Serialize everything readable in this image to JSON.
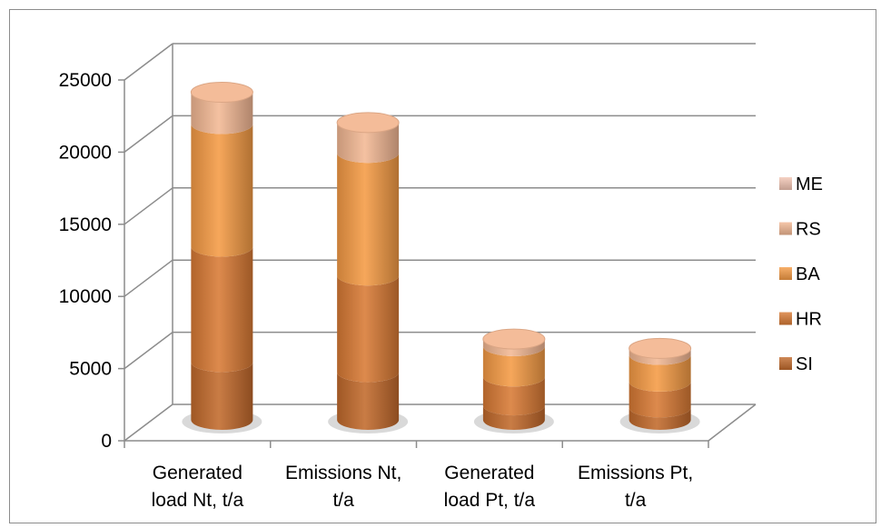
{
  "chart_data": {
    "type": "bar",
    "stacked": true,
    "style": "3d-cylinder",
    "categories": [
      [
        "Generated",
        "load Nt, t/a"
      ],
      [
        "Emissions Nt,",
        "t/a"
      ],
      [
        "Generated",
        "load Pt,  t/a"
      ],
      [
        "Emissions Pt,",
        "t/a"
      ]
    ],
    "series": [
      {
        "name": "SI",
        "color": "#c26a2c",
        "values": [
          4000,
          3300,
          1000,
          850
        ]
      },
      {
        "name": "HR",
        "color": "#d87a35",
        "values": [
          8000,
          6700,
          2000,
          1800
        ]
      },
      {
        "name": "BA",
        "color": "#f59b45",
        "values": [
          8500,
          8500,
          2100,
          1850
        ]
      },
      {
        "name": "RS",
        "color": "#f3b894",
        "values": [
          2200,
          2100,
          500,
          450
        ]
      },
      {
        "name": "ME",
        "color": "#f2c5b4",
        "values": [
          0,
          0,
          0,
          0
        ]
      }
    ],
    "y_ticks": [
      "0",
      "5000",
      "10000",
      "15000",
      "20000",
      "25000"
    ],
    "ylim": [
      0,
      25000
    ],
    "grid": true,
    "legend_position": "right",
    "legend_order": [
      "ME",
      "RS",
      "BA",
      "HR",
      "SI"
    ]
  }
}
